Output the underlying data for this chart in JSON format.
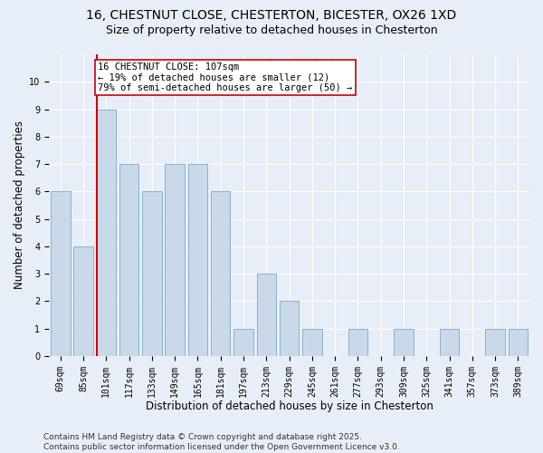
{
  "title1": "16, CHESTNUT CLOSE, CHESTERTON, BICESTER, OX26 1XD",
  "title2": "Size of property relative to detached houses in Chesterton",
  "xlabel": "Distribution of detached houses by size in Chesterton",
  "ylabel": "Number of detached properties",
  "categories": [
    "69sqm",
    "85sqm",
    "101sqm",
    "117sqm",
    "133sqm",
    "149sqm",
    "165sqm",
    "181sqm",
    "197sqm",
    "213sqm",
    "229sqm",
    "245sqm",
    "261sqm",
    "277sqm",
    "293sqm",
    "309sqm",
    "325sqm",
    "341sqm",
    "357sqm",
    "373sqm",
    "389sqm"
  ],
  "values": [
    6,
    4,
    9,
    7,
    6,
    7,
    7,
    6,
    1,
    3,
    2,
    1,
    0,
    1,
    0,
    1,
    0,
    1,
    0,
    1,
    1
  ],
  "bar_color": "#c9d9ea",
  "bar_edge_color": "#7aaac8",
  "vline_x_index": 2,
  "vline_color": "#cc0000",
  "annotation_line1": "16 CHESTNUT CLOSE: 107sqm",
  "annotation_line2": "← 19% of detached houses are smaller (12)",
  "annotation_line3": "79% of semi-detached houses are larger (50) →",
  "annotation_box_color": "#ffffff",
  "annotation_box_edge": "#cc0000",
  "ylim": [
    0,
    11
  ],
  "yticks": [
    0,
    1,
    2,
    3,
    4,
    5,
    6,
    7,
    8,
    9,
    10
  ],
  "footnote1": "Contains HM Land Registry data © Crown copyright and database right 2025.",
  "footnote2": "Contains public sector information licensed under the Open Government Licence v3.0.",
  "bg_color": "#e8eef8",
  "plot_bg_color": "#e8eef8",
  "grid_color": "#ffffff",
  "title1_fontsize": 10,
  "title2_fontsize": 9,
  "xlabel_fontsize": 8.5,
  "ylabel_fontsize": 8.5,
  "tick_fontsize": 7,
  "annotation_fontsize": 7.5,
  "footnote_fontsize": 6.5
}
